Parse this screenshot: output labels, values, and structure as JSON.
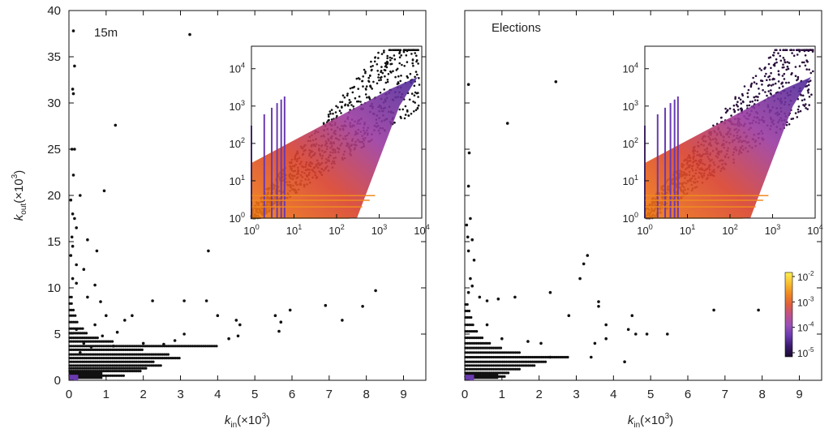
{
  "chart_data": [
    {
      "type": "scatter",
      "panel_label": "15m",
      "xlabel_sym": "k",
      "xlabel_sub": "in",
      "xlabel_suffix": "(×10",
      "xlabel_exp": "3",
      "xlabel_close": ")",
      "ylabel_sym": "k",
      "ylabel_sub": "out",
      "ylabel_suffix": "(×10",
      "ylabel_exp": "3",
      "ylabel_close": ")",
      "xlim": [
        0,
        9.6
      ],
      "ylim": [
        0,
        40
      ],
      "xticks": [
        0,
        1,
        2,
        3,
        4,
        5,
        6,
        7,
        8,
        9
      ],
      "yticks": [
        0,
        5,
        10,
        15,
        20,
        25,
        30,
        35,
        40
      ],
      "points": [
        [
          0.12,
          37.8
        ],
        [
          0.15,
          34.0
        ],
        [
          0.1,
          31.5
        ],
        [
          0.12,
          31.0
        ],
        [
          0.08,
          25.0
        ],
        [
          0.15,
          25.0
        ],
        [
          0.12,
          22.2
        ],
        [
          0.3,
          20.0
        ],
        [
          0.05,
          19.5
        ],
        [
          0.1,
          18.0
        ],
        [
          0.15,
          17.5
        ],
        [
          0.2,
          16.5
        ],
        [
          0.08,
          15.5
        ],
        [
          0.5,
          15.2
        ],
        [
          0.1,
          14.5
        ],
        [
          0.05,
          13.5
        ],
        [
          0.75,
          14.0
        ],
        [
          0.2,
          12.5
        ],
        [
          0.4,
          12.0
        ],
        [
          0.1,
          11.0
        ],
        [
          0.2,
          10.5
        ],
        [
          0.95,
          20.5
        ],
        [
          1.25,
          27.6
        ],
        [
          3.25,
          37.4
        ],
        [
          0.7,
          10.3
        ],
        [
          0.5,
          9.0
        ],
        [
          0.85,
          8.5
        ],
        [
          1.0,
          7.0
        ],
        [
          1.5,
          6.5
        ],
        [
          1.7,
          7.0
        ],
        [
          2.25,
          8.6
        ],
        [
          3.1,
          8.6
        ],
        [
          3.7,
          8.6
        ],
        [
          3.75,
          14.0
        ],
        [
          4.0,
          7.0
        ],
        [
          4.5,
          6.5
        ],
        [
          4.6,
          6.0
        ],
        [
          4.3,
          4.5
        ],
        [
          4.55,
          4.8
        ],
        [
          5.55,
          7.0
        ],
        [
          5.7,
          6.3
        ],
        [
          5.65,
          5.3
        ],
        [
          5.95,
          7.6
        ],
        [
          6.9,
          8.1
        ],
        [
          7.35,
          6.5
        ],
        [
          7.9,
          8.0
        ],
        [
          8.25,
          9.7
        ],
        [
          3.1,
          5.0
        ],
        [
          2.85,
          4.3
        ],
        [
          2.55,
          3.9
        ],
        [
          1.3,
          5.2
        ],
        [
          0.9,
          4.8
        ],
        [
          0.7,
          6.0
        ],
        [
          1.2,
          3.7
        ],
        [
          0.6,
          3.6
        ],
        [
          2.0,
          4.0
        ],
        [
          0.2,
          5.5
        ],
        [
          0.4,
          4.0
        ],
        [
          0.3,
          3.0
        ]
      ],
      "band_rows": [
        {
          "k_out": 0.5,
          "x_max": 1.5
        },
        {
          "k_out": 1.0,
          "x_max": 1.95
        },
        {
          "k_out": 1.3,
          "x_max": 2.1
        },
        {
          "k_out": 1.6,
          "x_max": 2.5
        },
        {
          "k_out": 2.0,
          "x_max": 2.3
        },
        {
          "k_out": 2.4,
          "x_max": 3.0
        },
        {
          "k_out": 2.8,
          "x_max": 2.7
        },
        {
          "k_out": 3.3,
          "x_max": 2.0
        },
        {
          "k_out": 3.7,
          "x_max": 4.0
        },
        {
          "k_out": 4.2,
          "x_max": 1.2
        },
        {
          "k_out": 4.6,
          "x_max": 0.8
        },
        {
          "k_out": 5.1,
          "x_max": 0.5
        },
        {
          "k_out": 5.6,
          "x_max": 0.4
        },
        {
          "k_out": 6.3,
          "x_max": 0.25
        },
        {
          "k_out": 7.0,
          "x_max": 0.2
        },
        {
          "k_out": 7.6,
          "x_max": 0.15
        },
        {
          "k_out": 8.3,
          "x_max": 0.12
        },
        {
          "k_out": 9.0,
          "x_max": 0.1
        }
      ],
      "inset": {
        "xscale": "log",
        "yscale": "log",
        "xlim": [
          1,
          10000
        ],
        "ylim": [
          1,
          40000
        ],
        "xticks": [
          "10",
          "10",
          "10",
          "10",
          "10"
        ],
        "xtick_exps": [
          "0",
          "1",
          "2",
          "3",
          "4"
        ],
        "yticks": [
          "10",
          "10",
          "10",
          "10",
          "10"
        ],
        "ytick_exps": [
          "0",
          "1",
          "2",
          "3",
          "4"
        ]
      }
    },
    {
      "type": "scatter",
      "panel_label": "Elections",
      "xlabel_sym": "k",
      "xlabel_sub": "in",
      "xlabel_suffix": "(×10",
      "xlabel_exp": "3",
      "xlabel_close": ")",
      "xlim": [
        0,
        9.6
      ],
      "ylim": [
        0,
        40
      ],
      "xticks": [
        0,
        1,
        2,
        3,
        4,
        5,
        6,
        7,
        8,
        9
      ],
      "points": [
        [
          0.1,
          32.0
        ],
        [
          2.45,
          32.3
        ],
        [
          1.15,
          27.8
        ],
        [
          0.12,
          24.6
        ],
        [
          0.1,
          21.0
        ],
        [
          0.15,
          17.5
        ],
        [
          0.05,
          16.8
        ],
        [
          0.08,
          15.5
        ],
        [
          0.2,
          15.2
        ],
        [
          0.1,
          14.0
        ],
        [
          0.25,
          13.0
        ],
        [
          0.15,
          11.0
        ],
        [
          0.2,
          10.2
        ],
        [
          0.1,
          9.5
        ],
        [
          0.4,
          9.0
        ],
        [
          0.6,
          8.6
        ],
        [
          0.9,
          8.8
        ],
        [
          1.35,
          9.0
        ],
        [
          2.3,
          9.5
        ],
        [
          3.2,
          12.6
        ],
        [
          3.3,
          13.5
        ],
        [
          3.1,
          11.0
        ],
        [
          3.6,
          8.5
        ],
        [
          3.6,
          8.0
        ],
        [
          2.8,
          7.0
        ],
        [
          3.8,
          6.0
        ],
        [
          4.5,
          7.0
        ],
        [
          4.4,
          5.5
        ],
        [
          4.6,
          5.0
        ],
        [
          4.9,
          5.0
        ],
        [
          5.45,
          5.0
        ],
        [
          6.7,
          7.6
        ],
        [
          7.9,
          7.6
        ],
        [
          4.3,
          2.0
        ],
        [
          3.5,
          4.0
        ],
        [
          3.8,
          4.5
        ],
        [
          3.4,
          2.5
        ],
        [
          2.3,
          2.5
        ],
        [
          2.05,
          4.0
        ],
        [
          1.7,
          4.2
        ],
        [
          1.0,
          4.5
        ],
        [
          0.6,
          6.0
        ]
      ],
      "band_rows": [
        {
          "k_out": 0.4,
          "x_max": 1.1
        },
        {
          "k_out": 0.8,
          "x_max": 1.2
        },
        {
          "k_out": 1.2,
          "x_max": 1.5
        },
        {
          "k_out": 1.6,
          "x_max": 1.9
        },
        {
          "k_out": 2.0,
          "x_max": 2.2
        },
        {
          "k_out": 2.5,
          "x_max": 2.8
        },
        {
          "k_out": 3.0,
          "x_max": 1.5
        },
        {
          "k_out": 3.5,
          "x_max": 1.0
        },
        {
          "k_out": 4.0,
          "x_max": 0.7
        },
        {
          "k_out": 4.6,
          "x_max": 0.5
        },
        {
          "k_out": 5.3,
          "x_max": 0.35
        },
        {
          "k_out": 6.0,
          "x_max": 0.25
        },
        {
          "k_out": 6.8,
          "x_max": 0.18
        },
        {
          "k_out": 7.5,
          "x_max": 0.14
        },
        {
          "k_out": 8.2,
          "x_max": 0.1
        }
      ],
      "inset": {
        "xscale": "log",
        "yscale": "log",
        "xlim": [
          1,
          10000
        ],
        "ylim": [
          1,
          40000
        ],
        "xticks": [
          "10",
          "10",
          "10",
          "10",
          "10"
        ],
        "xtick_exps": [
          "0",
          "1",
          "2",
          "3",
          "4"
        ],
        "yticks": [
          "10",
          "10",
          "10",
          "10",
          "10"
        ],
        "ytick_exps": [
          "0",
          "1",
          "2",
          "3",
          "4"
        ]
      },
      "colorbar": {
        "scale": "log",
        "range": [
          1e-05,
          0.01
        ],
        "ticks": [
          "10",
          "10",
          "10",
          "10"
        ],
        "tick_exps": [
          "-2",
          "-3",
          "-4",
          "-5"
        ],
        "colors": [
          "#1a0a2e",
          "#3a1a6e",
          "#6a3ab0",
          "#9a50b8",
          "#c0508a",
          "#e0603a",
          "#f08a20",
          "#f8c030",
          "#ffee50"
        ]
      }
    }
  ]
}
